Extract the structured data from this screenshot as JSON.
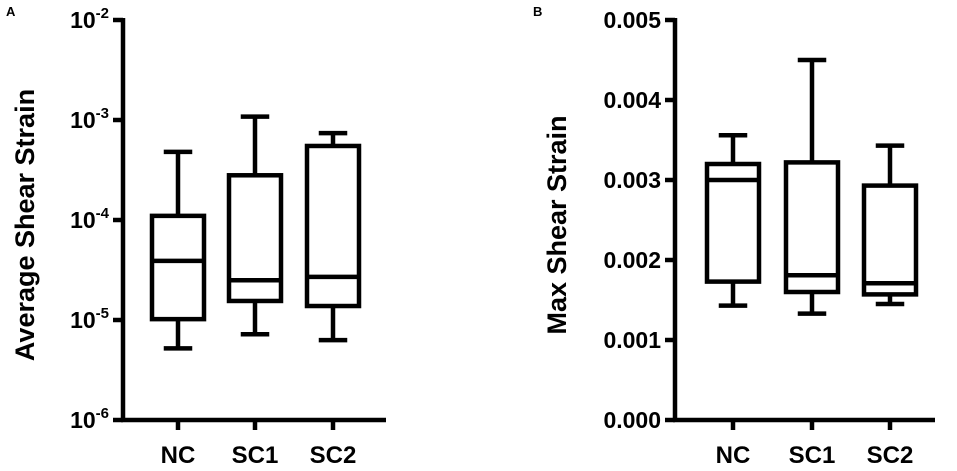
{
  "chart_data": [
    {
      "panel": "A",
      "type": "box",
      "ylabel": "Average Shear Strain",
      "yscale": "log",
      "ylim": [
        1e-06,
        0.01
      ],
      "yticks": [
        {
          "value": 0.01,
          "base": "10",
          "exp": "-2"
        },
        {
          "value": 0.001,
          "base": "10",
          "exp": "-3"
        },
        {
          "value": 0.0001,
          "base": "10",
          "exp": "-4"
        },
        {
          "value": 1e-05,
          "base": "10",
          "exp": "-5"
        },
        {
          "value": 1e-06,
          "base": "10",
          "exp": "-6"
        }
      ],
      "categories": [
        "NC",
        "SC1",
        "SC2"
      ],
      "boxes": [
        {
          "min": 5.2e-06,
          "q1": 1.02e-05,
          "median": 3.9e-05,
          "q3": 0.00011,
          "max": 0.00048
        },
        {
          "min": 7.2e-06,
          "q1": 1.55e-05,
          "median": 2.5e-05,
          "q3": 0.00028,
          "max": 0.00108
        },
        {
          "min": 6.3e-06,
          "q1": 1.38e-05,
          "median": 2.7e-05,
          "q3": 0.00055,
          "max": 0.00074
        }
      ]
    },
    {
      "panel": "B",
      "type": "box",
      "ylabel": "Max Shear Strain",
      "yscale": "linear",
      "ylim": [
        0,
        0.005
      ],
      "yticks": [
        {
          "value": 0,
          "label": "0.000"
        },
        {
          "value": 0.001,
          "label": "0.001"
        },
        {
          "value": 0.002,
          "label": "0.002"
        },
        {
          "value": 0.003,
          "label": "0.003"
        },
        {
          "value": 0.004,
          "label": "0.004"
        },
        {
          "value": 0.005,
          "label": "0.005"
        }
      ],
      "categories": [
        "NC",
        "SC1",
        "SC2"
      ],
      "boxes": [
        {
          "min": 0.00143,
          "q1": 0.00173,
          "median": 0.003,
          "q3": 0.0032,
          "max": 0.00356
        },
        {
          "min": 0.00133,
          "q1": 0.0016,
          "median": 0.00181,
          "q3": 0.00322,
          "max": 0.0045
        },
        {
          "min": 0.00145,
          "q1": 0.00157,
          "median": 0.00171,
          "q3": 0.00293,
          "max": 0.00343
        }
      ]
    }
  ]
}
